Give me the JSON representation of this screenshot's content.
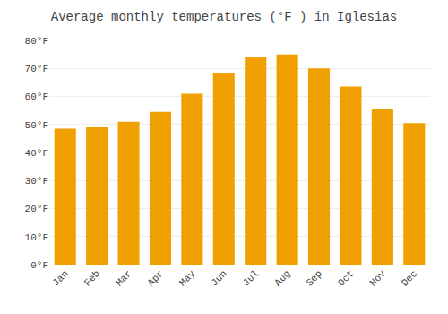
{
  "chart_data": {
    "type": "bar",
    "title": "Average monthly temperatures (°F ) in Iglesias",
    "categories": [
      "Jan",
      "Feb",
      "Mar",
      "Apr",
      "May",
      "Jun",
      "Jul",
      "Aug",
      "Sep",
      "Oct",
      "Nov",
      "Dec"
    ],
    "values": [
      48.5,
      49.0,
      51.0,
      54.5,
      61.0,
      68.5,
      74.0,
      75.0,
      70.0,
      63.5,
      55.5,
      50.5
    ],
    "color": "#F0A000",
    "ylim": [
      0,
      80
    ],
    "yticks": [
      {
        "value": 0,
        "label": "0°F"
      },
      {
        "value": 10,
        "label": "10°F"
      },
      {
        "value": 20,
        "label": "20°F"
      },
      {
        "value": 30,
        "label": "30°F"
      },
      {
        "value": 40,
        "label": "40°F"
      },
      {
        "value": 50,
        "label": "50°F"
      },
      {
        "value": 60,
        "label": "60°F"
      },
      {
        "value": 70,
        "label": "70°F"
      },
      {
        "value": 80,
        "label": "80°F"
      }
    ],
    "grid": true
  }
}
